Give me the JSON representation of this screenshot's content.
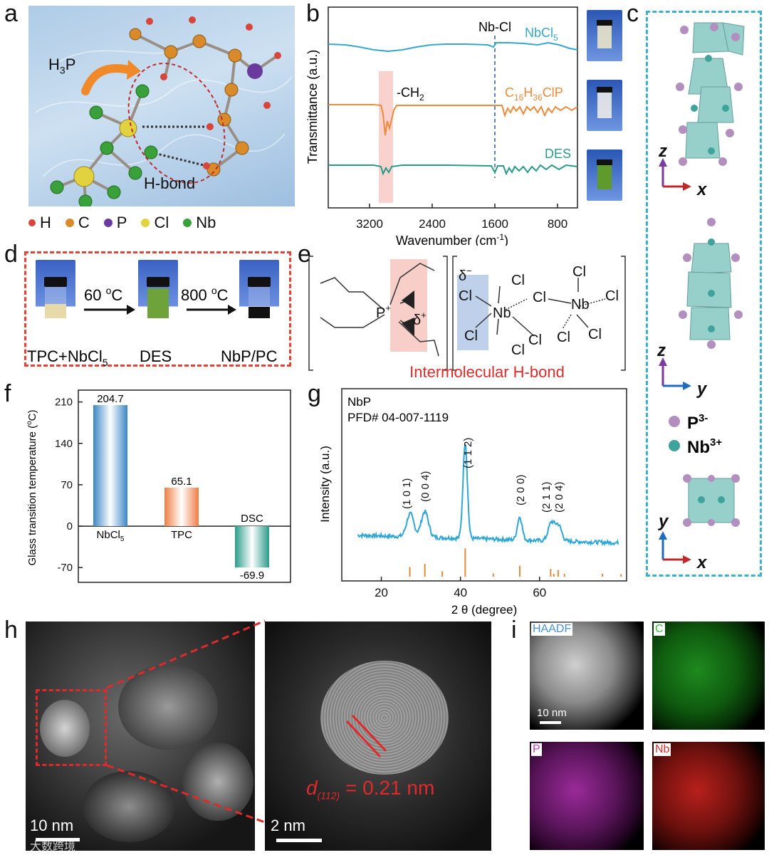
{
  "panel_labels": {
    "a": "a",
    "b": "b",
    "c": "c",
    "d": "d",
    "e": "e",
    "f": "f",
    "g": "g",
    "h": "h",
    "i": "i"
  },
  "panel_a": {
    "h3p": "H",
    "h3p_sub": "3",
    "h3p_p": "P",
    "hbond": "H-bond",
    "legend": [
      {
        "label": "H",
        "color": "#d8453a"
      },
      {
        "label": "C",
        "color": "#d98a2b"
      },
      {
        "label": "P",
        "color": "#6a3a9e"
      },
      {
        "label": "Cl",
        "color": "#e3d240"
      },
      {
        "label": "Nb",
        "color": "#3aa03a"
      }
    ]
  },
  "panel_b": {
    "ylabel": "Transmittance (a.u.)",
    "xlabel": "Wavenumber (cm",
    "xlabel_sup": "-1",
    "xlabel_end": ")",
    "nbcl_label": "Nb-Cl",
    "ch2_label": "-CH",
    "ch2_sub": "2",
    "ticks": [
      "3200",
      "2400",
      "1600",
      "800"
    ],
    "series": [
      {
        "name": "NbCl",
        "sub": "5",
        "color": "#35a8cf"
      },
      {
        "name": "C",
        "sub": "16",
        "mid": "H",
        "sub2": "36",
        "end": "ClP",
        "color": "#ef8a3c"
      },
      {
        "name": "DES",
        "sub": "",
        "color": "#2a9b8a"
      }
    ]
  },
  "panel_c": {
    "axes": [
      {
        "v": "z",
        "h": "x"
      },
      {
        "v": "z",
        "h": "y"
      },
      {
        "v": "y",
        "h": "x"
      }
    ],
    "legend": [
      {
        "label": "P",
        "sup": "3-",
        "color": "#b28fbf"
      },
      {
        "label": "Nb",
        "sup": "3+",
        "color": "#3fa39c"
      }
    ]
  },
  "panel_d": {
    "step1": "60 ",
    "step1_sup": "o",
    "step1_unit": "C",
    "step2": "800 ",
    "step2_sup": "o",
    "step2_unit": "C",
    "vials": [
      "TPC+NbCl",
      "DES",
      "NbP/PC"
    ],
    "vial1_sub": "5"
  },
  "panel_e": {
    "caption": "Intermolecular H-bond",
    "p_plus": "P",
    "p_plus_sup": "+",
    "delta_plus": "δ",
    "delta_plus_sup": "+",
    "delta_minus": "δ",
    "delta_minus_sup": "−",
    "atoms": {
      "nb": "Nb",
      "cl": "Cl"
    }
  },
  "panel_f": {
    "ylabel": "Glass transition temperature (",
    "ylabel_sup": "o",
    "ylabel_end": "C)",
    "yticks": [
      "210",
      "140",
      "70",
      "0",
      "-70"
    ],
    "dsc": "DSC",
    "cat_tpc": "TPC",
    "cat_nbcl": "NbCl",
    "cat_nbcl_sub": "5"
  },
  "panel_g": {
    "title1": "NbP",
    "title2": "PFD# 04-007-1119",
    "ylabel": "Intensity (a.u.)",
    "xlabel": "2 θ (degree)",
    "xticks": [
      "20",
      "40",
      "60"
    ],
    "peaks": [
      "(1 0 1)",
      "(0 0 4)",
      "(1 1 2)",
      "(2 0 0)",
      "(2 1 1)",
      "(2 0 4)"
    ]
  },
  "panel_h": {
    "scale1": "10 nm",
    "scale2": "2 nm",
    "dspacing": "d",
    "dspacing_sub": "(112)",
    "dspacing_val": " = 0.21 nm",
    "watermark": "大数跨境"
  },
  "panel_i": {
    "maps": [
      {
        "label": "HAADF",
        "color": "#4a90d9"
      },
      {
        "label": "C",
        "color": "#2fbf3a"
      },
      {
        "label": "P",
        "color": "#c03bc0"
      },
      {
        "label": "Nb",
        "color": "#e0302a"
      }
    ],
    "scale": "10 nm"
  },
  "chart_data": [
    {
      "type": "bar",
      "categories": [
        "NbCl5",
        "TPC",
        "DSC"
      ],
      "values": [
        204.7,
        65.1,
        -69.9
      ],
      "ylabel": "Glass transition temperature (oC)",
      "ylim": [
        -95,
        230
      ],
      "colors": [
        "#3a86c4",
        "#ef7d45",
        "#2a9b8a"
      ]
    },
    {
      "type": "line",
      "title": "NbP",
      "xlabel": "2 θ (degree)",
      "ylabel": "Intensity (a.u.)",
      "xlim": [
        10,
        82
      ],
      "series": [
        {
          "name": "NbP",
          "x": [
            10,
            27.5,
            31,
            41.2,
            55,
            63.2,
            64.8,
            80
          ],
          "y": [
            0.28,
            0.42,
            0.46,
            1.0,
            0.36,
            0.32,
            0.31,
            0.2
          ]
        }
      ],
      "reference_x": [
        27.2,
        31.0,
        35.4,
        41.2,
        48.3,
        55.0,
        62.8,
        63.6,
        64.7,
        66.3,
        75.9,
        80.6
      ],
      "reference_h": [
        0.75,
        1.0,
        0.42,
        2.2,
        0.25,
        0.85,
        0.6,
        0.22,
        0.52,
        0.22,
        0.22,
        0.18
      ]
    },
    {
      "type": "line",
      "xlabel": "Wavenumber (cm-1)",
      "ylabel": "Transmittance (a.u.)",
      "xlim": [
        4000,
        500
      ],
      "series": [
        {
          "name": "NbCl5"
        },
        {
          "name": "C16H36ClP"
        },
        {
          "name": "DES"
        }
      ]
    }
  ]
}
